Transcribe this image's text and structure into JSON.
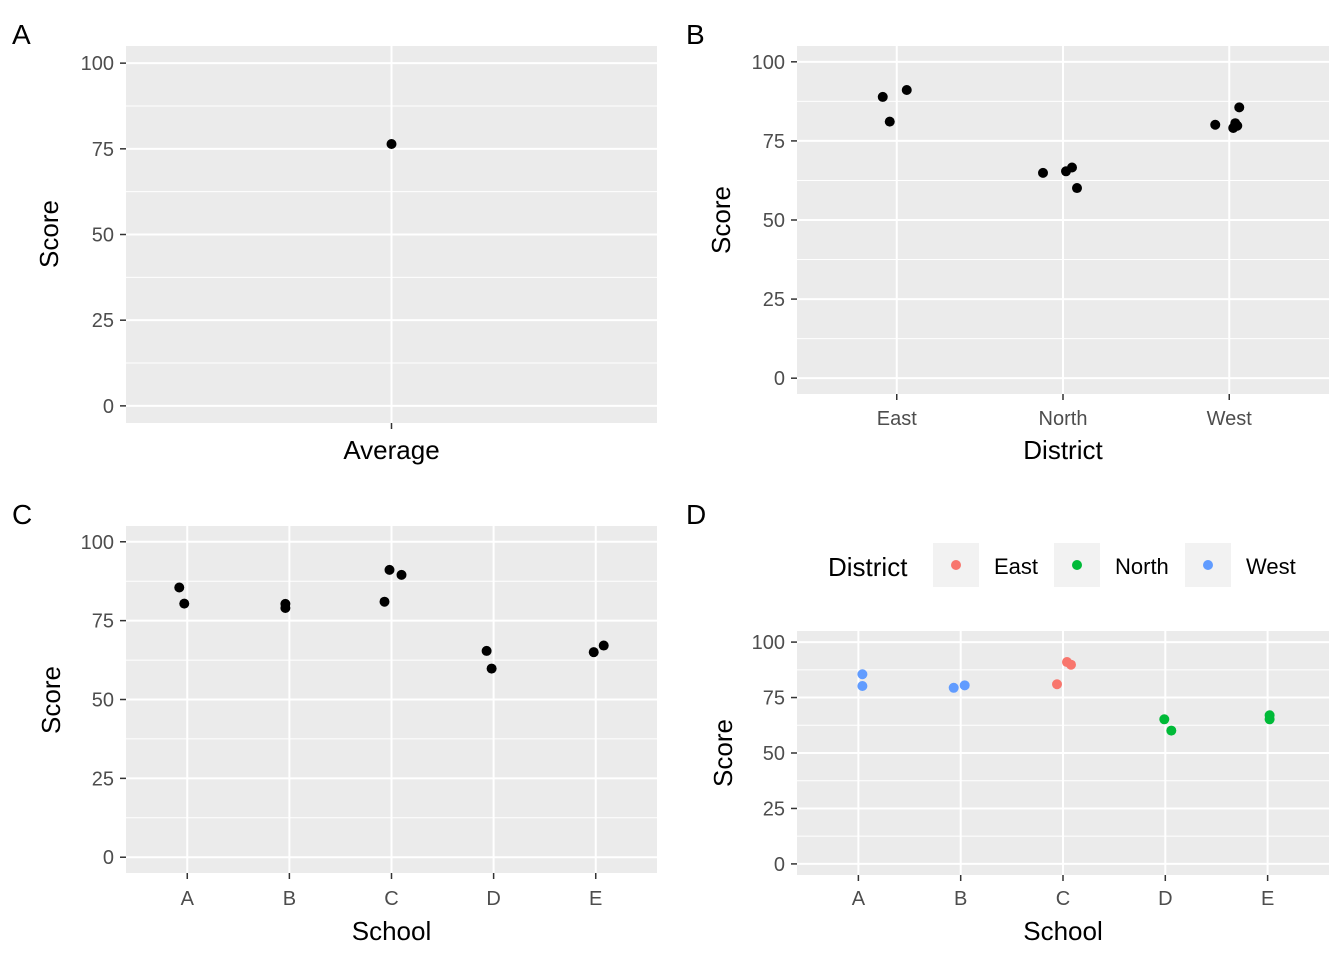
{
  "chart_data": [
    {
      "panel": "A",
      "type": "scatter",
      "xlabel": "Average",
      "ylabel": "Score",
      "x_categories": [],
      "x_axis_title_only": true,
      "ylim": [
        -5,
        105
      ],
      "yticks": [
        0,
        25,
        50,
        75,
        100
      ],
      "grid": true,
      "points": [
        {
          "x": "Average",
          "y": 76.4
        }
      ]
    },
    {
      "panel": "B",
      "type": "scatter",
      "xlabel": "District",
      "ylabel": "Score",
      "x_categories": [
        "East",
        "North",
        "West"
      ],
      "ylim": [
        -5,
        105
      ],
      "yticks": [
        0,
        25,
        50,
        75,
        100
      ],
      "grid": true,
      "points": [
        {
          "x": "East",
          "y": 88.9
        },
        {
          "x": "East",
          "y": 81.1
        },
        {
          "x": "East",
          "y": 91.1
        },
        {
          "x": "North",
          "y": 64.9
        },
        {
          "x": "North",
          "y": 65.4
        },
        {
          "x": "North",
          "y": 66.6
        },
        {
          "x": "North",
          "y": 60.1
        },
        {
          "x": "West",
          "y": 80.1
        },
        {
          "x": "West",
          "y": 79.1
        },
        {
          "x": "West",
          "y": 79.8
        },
        {
          "x": "West",
          "y": 80.6
        },
        {
          "x": "West",
          "y": 85.6
        }
      ]
    },
    {
      "panel": "C",
      "type": "scatter",
      "xlabel": "School",
      "ylabel": "Score",
      "x_categories": [
        "A",
        "B",
        "C",
        "D",
        "E"
      ],
      "ylim": [
        -5,
        105
      ],
      "yticks": [
        0,
        25,
        50,
        75,
        100
      ],
      "grid": true,
      "points": [
        {
          "x": "A",
          "y": 85.5
        },
        {
          "x": "A",
          "y": 80.4
        },
        {
          "x": "B",
          "y": 80.3
        },
        {
          "x": "B",
          "y": 79.0
        },
        {
          "x": "C",
          "y": 81.0
        },
        {
          "x": "C",
          "y": 91.1
        },
        {
          "x": "C",
          "y": 89.5
        },
        {
          "x": "D",
          "y": 65.4
        },
        {
          "x": "D",
          "y": 59.8
        },
        {
          "x": "E",
          "y": 65.0
        },
        {
          "x": "E",
          "y": 67.1
        }
      ]
    },
    {
      "panel": "D",
      "type": "scatter",
      "xlabel": "School",
      "ylabel": "Score",
      "x_categories": [
        "A",
        "B",
        "C",
        "D",
        "E"
      ],
      "ylim": [
        -5,
        105
      ],
      "yticks": [
        0,
        25,
        50,
        75,
        100
      ],
      "grid": true,
      "legend": {
        "title": "District",
        "position": "top",
        "entries": [
          {
            "label": "East",
            "color": "#F8766D"
          },
          {
            "label": "North",
            "color": "#00BA38"
          },
          {
            "label": "West",
            "color": "#619CFF"
          }
        ]
      },
      "points": [
        {
          "x": "A",
          "y": 85.5,
          "group": "West"
        },
        {
          "x": "A",
          "y": 80.2,
          "group": "West"
        },
        {
          "x": "B",
          "y": 79.4,
          "group": "West"
        },
        {
          "x": "B",
          "y": 80.5,
          "group": "West"
        },
        {
          "x": "C",
          "y": 81.0,
          "group": "East"
        },
        {
          "x": "C",
          "y": 91.0,
          "group": "East"
        },
        {
          "x": "C",
          "y": 89.8,
          "group": "East"
        },
        {
          "x": "D",
          "y": 65.2,
          "group": "North"
        },
        {
          "x": "D",
          "y": 60.1,
          "group": "North"
        },
        {
          "x": "E",
          "y": 67.0,
          "group": "North"
        },
        {
          "x": "E",
          "y": 65.2,
          "group": "North"
        }
      ]
    }
  ]
}
